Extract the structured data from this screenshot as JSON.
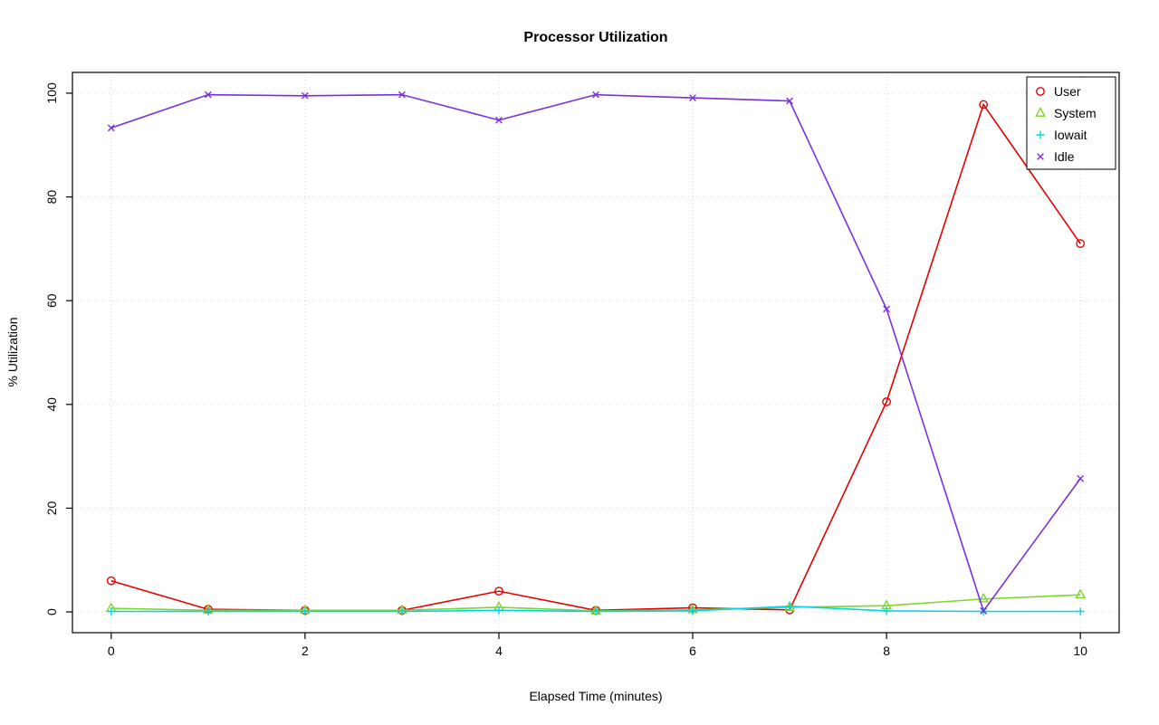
{
  "chart_data": {
    "type": "line",
    "title": "Processor Utilization",
    "xlabel": "Elapsed Time (minutes)",
    "ylabel": "% Utilization",
    "xlim": [
      0,
      10
    ],
    "ylim": [
      0,
      100
    ],
    "xticks": [
      0,
      2,
      4,
      6,
      8,
      10
    ],
    "yticks": [
      0,
      20,
      40,
      60,
      80,
      100
    ],
    "grid": true,
    "grid_style": "dotted",
    "legend_position": "top-right",
    "x": [
      0,
      1,
      2,
      3,
      4,
      5,
      6,
      7,
      8,
      9,
      10
    ],
    "series": [
      {
        "name": "User",
        "marker": "circle",
        "color": "#e60000",
        "values": [
          6,
          0.5,
          0.3,
          0.3,
          4,
          0.3,
          0.8,
          0.4,
          40.5,
          97.8,
          71
        ]
      },
      {
        "name": "System",
        "marker": "triangle",
        "color": "#7ed62d",
        "values": [
          0.7,
          0.3,
          0.3,
          0.3,
          0.9,
          0.2,
          0.4,
          0.9,
          1.2,
          2.5,
          3.3
        ]
      },
      {
        "name": "Iowait",
        "marker": "plus",
        "color": "#00d4e8",
        "values": [
          0.1,
          0.1,
          0.1,
          0.1,
          0.3,
          0.1,
          0.2,
          1.1,
          0.2,
          0.1,
          0.1
        ]
      },
      {
        "name": "Idle",
        "marker": "x",
        "color": "#7a2fe2",
        "values": [
          93.3,
          99.7,
          99.5,
          99.7,
          94.8,
          99.7,
          99.1,
          98.5,
          58.4,
          0.2,
          25.7
        ]
      }
    ]
  },
  "colors": {
    "grid": "#d4d4d4",
    "axis": "#000000",
    "background": "#ffffff",
    "legend_border": "#000000"
  }
}
